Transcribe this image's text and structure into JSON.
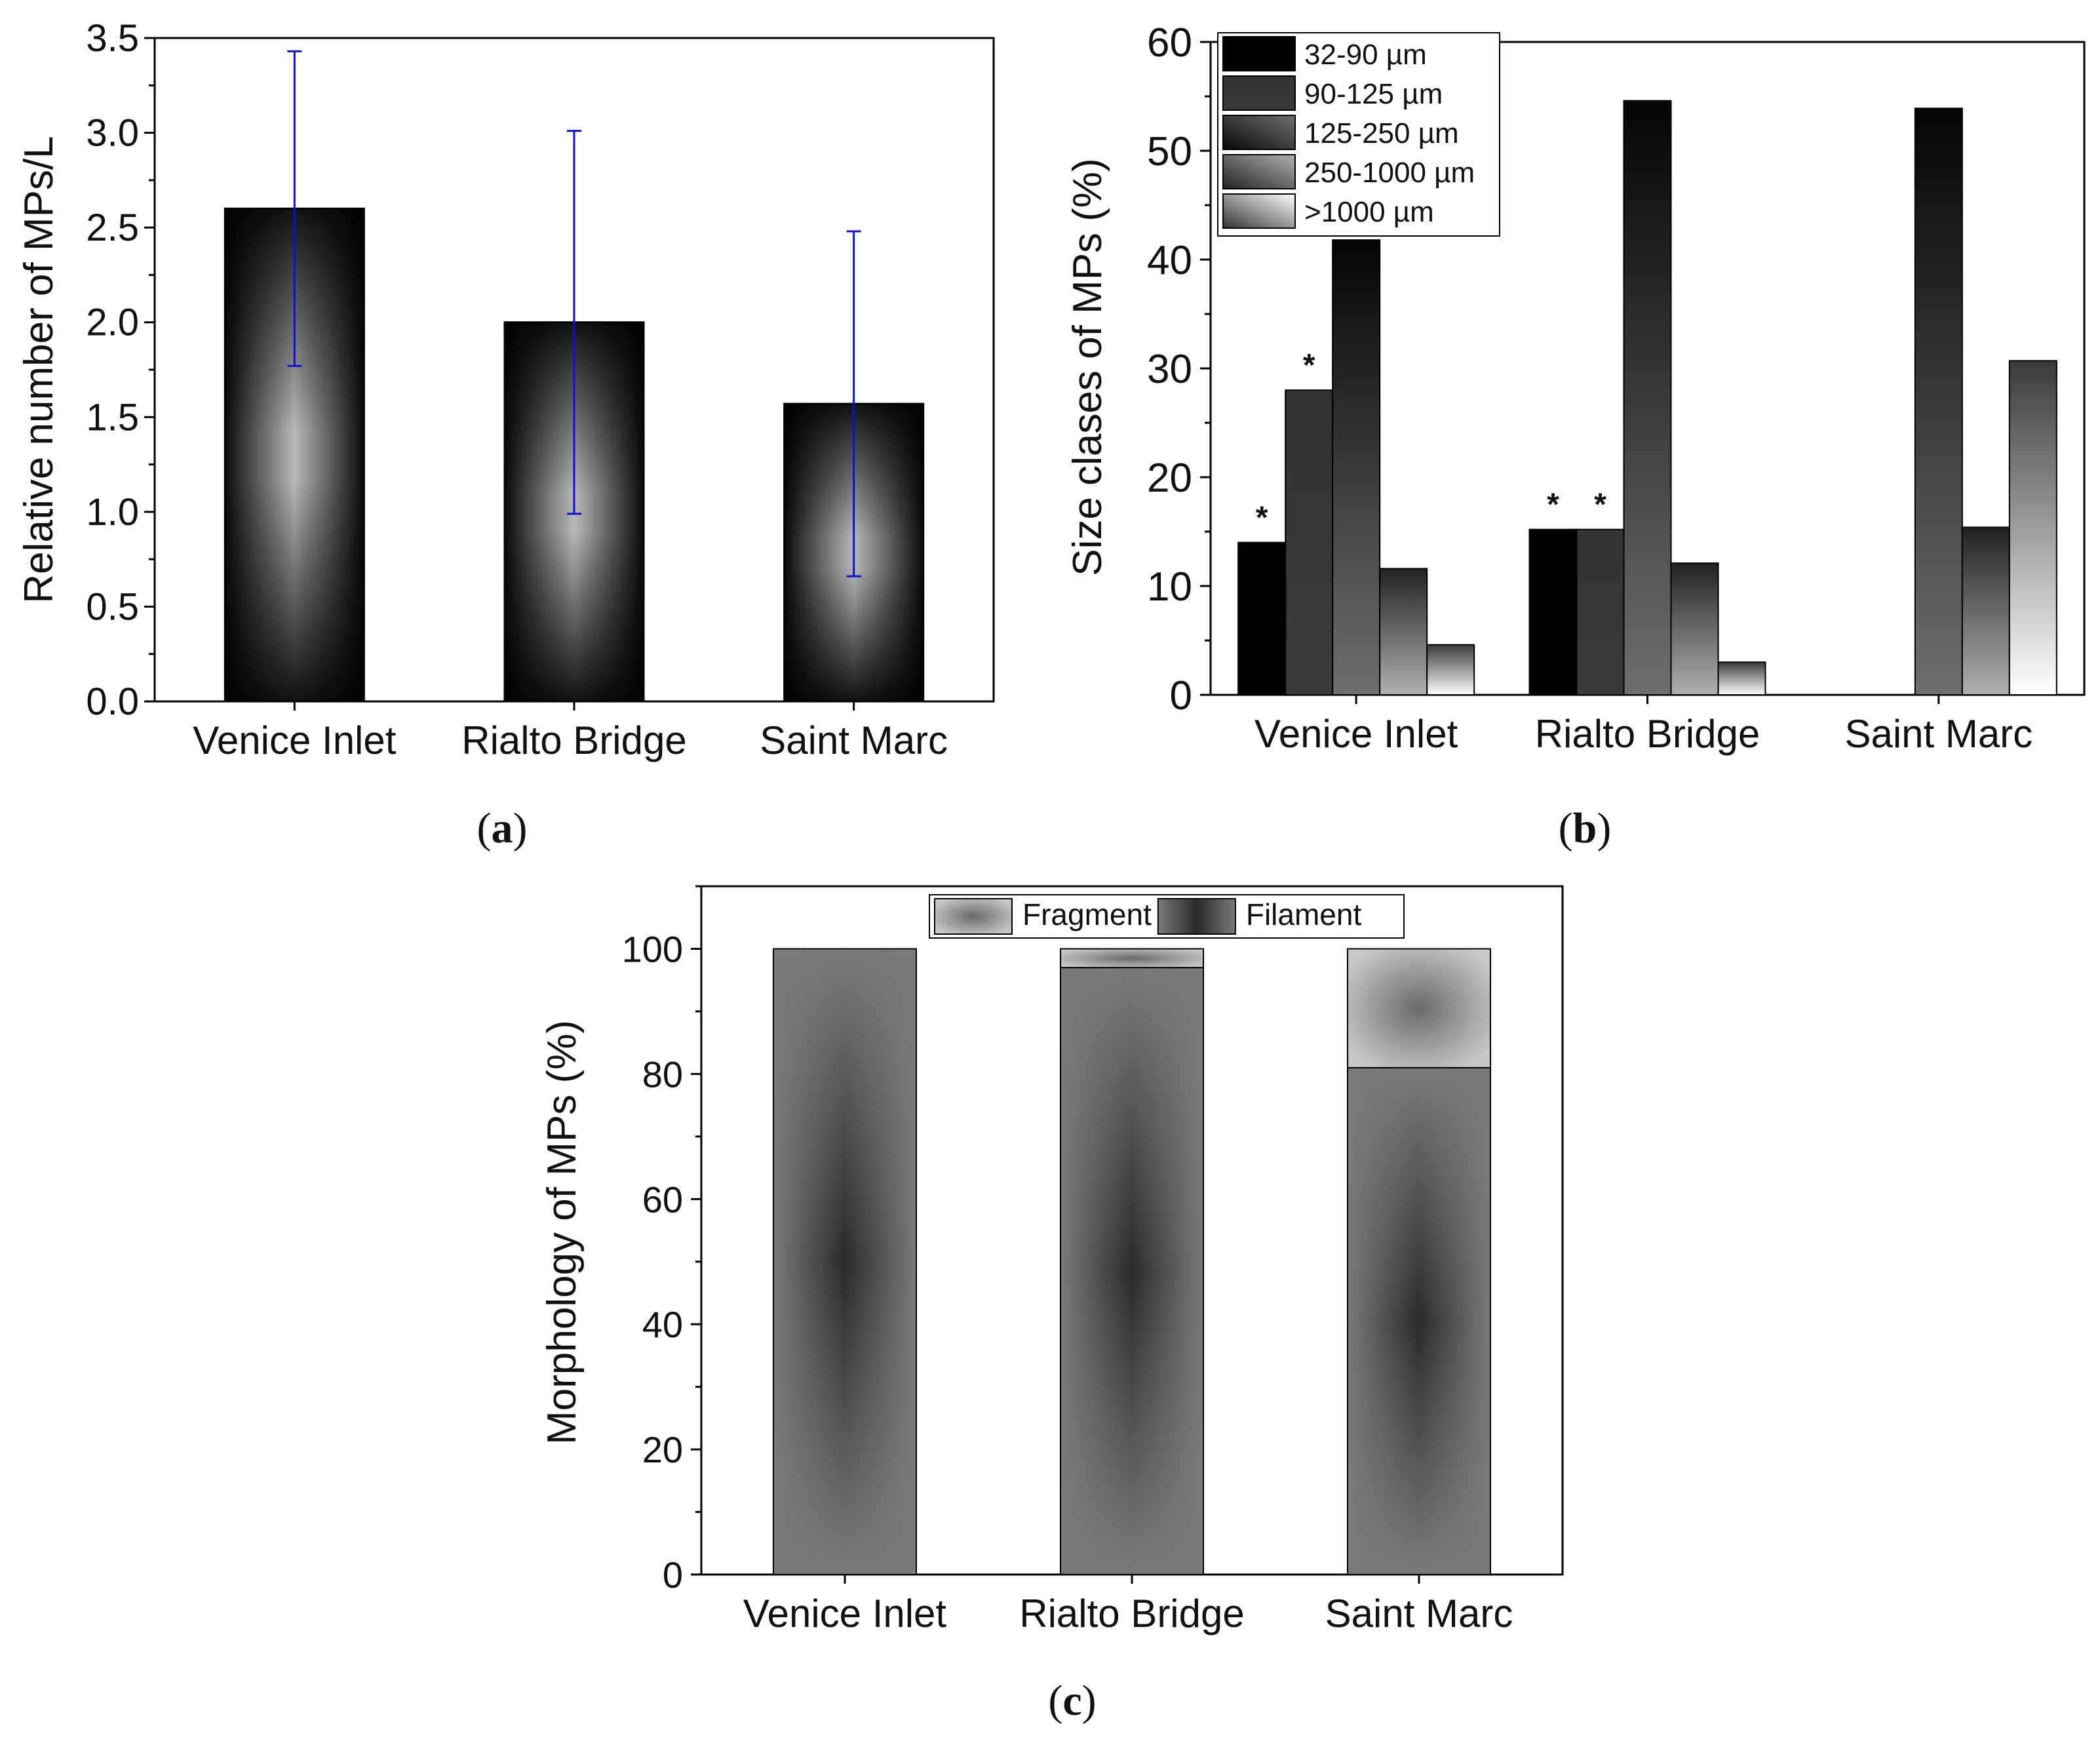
{
  "chart_data": [
    {
      "id": "a",
      "type": "bar",
      "panel_label": "a",
      "categories": [
        "Venice Inlet",
        "Rialto Bridge",
        "Saint Marc"
      ],
      "values": [
        2.6,
        2.0,
        1.57
      ],
      "error_low": [
        1.77,
        0.99,
        0.66
      ],
      "error_high": [
        3.43,
        3.01,
        2.48
      ],
      "ylabel": "Relative number of MPs/L",
      "xlabel": "",
      "ylim": [
        0,
        3.5
      ],
      "yticks": [
        "0.0",
        "0.5",
        "1.0",
        "1.5",
        "2.0",
        "2.5",
        "3.0",
        "3.5"
      ],
      "error_color": "#1010d0"
    },
    {
      "id": "b",
      "type": "bar",
      "panel_label": "b",
      "categories": [
        "Venice Inlet",
        "Rialto Bridge",
        "Saint Marc"
      ],
      "series": [
        {
          "name": "32-90 µm",
          "values": [
            14,
            15.2,
            0
          ],
          "markers": [
            "*",
            "*",
            ""
          ]
        },
        {
          "name": "90-125 µm",
          "values": [
            28,
            15.2,
            0
          ],
          "markers": [
            "*",
            "*",
            ""
          ]
        },
        {
          "name": "125-250 µm",
          "values": [
            41.8,
            54.6,
            53.9
          ],
          "markers": [
            "",
            "",
            ""
          ]
        },
        {
          "name": "250-1000 µm",
          "values": [
            11.6,
            12.1,
            15.4
          ],
          "markers": [
            "",
            "",
            ""
          ]
        },
        {
          "name": ">1000 µm",
          "values": [
            4.6,
            3.0,
            30.7
          ],
          "markers": [
            "",
            "",
            ""
          ]
        }
      ],
      "ylabel": "Size clases of MPs (%)",
      "xlabel": "",
      "ylim": [
        0,
        60
      ],
      "yticks": [
        "0",
        "10",
        "20",
        "30",
        "40",
        "50",
        "60"
      ],
      "legend_position": "top-left"
    },
    {
      "id": "c",
      "type": "bar",
      "stacked": true,
      "panel_label": "c",
      "categories": [
        "Venice Inlet",
        "Rialto Bridge",
        "Saint Marc"
      ],
      "series": [
        {
          "name": "Filament",
          "values": [
            100,
            97,
            81
          ]
        },
        {
          "name": "Fragment",
          "values": [
            0,
            3,
            19
          ]
        }
      ],
      "legend_order": [
        "Fragment",
        "Filament"
      ],
      "ylabel": "Morphology of MPs (%)",
      "xlabel": "",
      "ylim": [
        0,
        110
      ],
      "yticks": [
        "0",
        "20",
        "40",
        "60",
        "80",
        "100"
      ],
      "legend_position": "top"
    }
  ]
}
